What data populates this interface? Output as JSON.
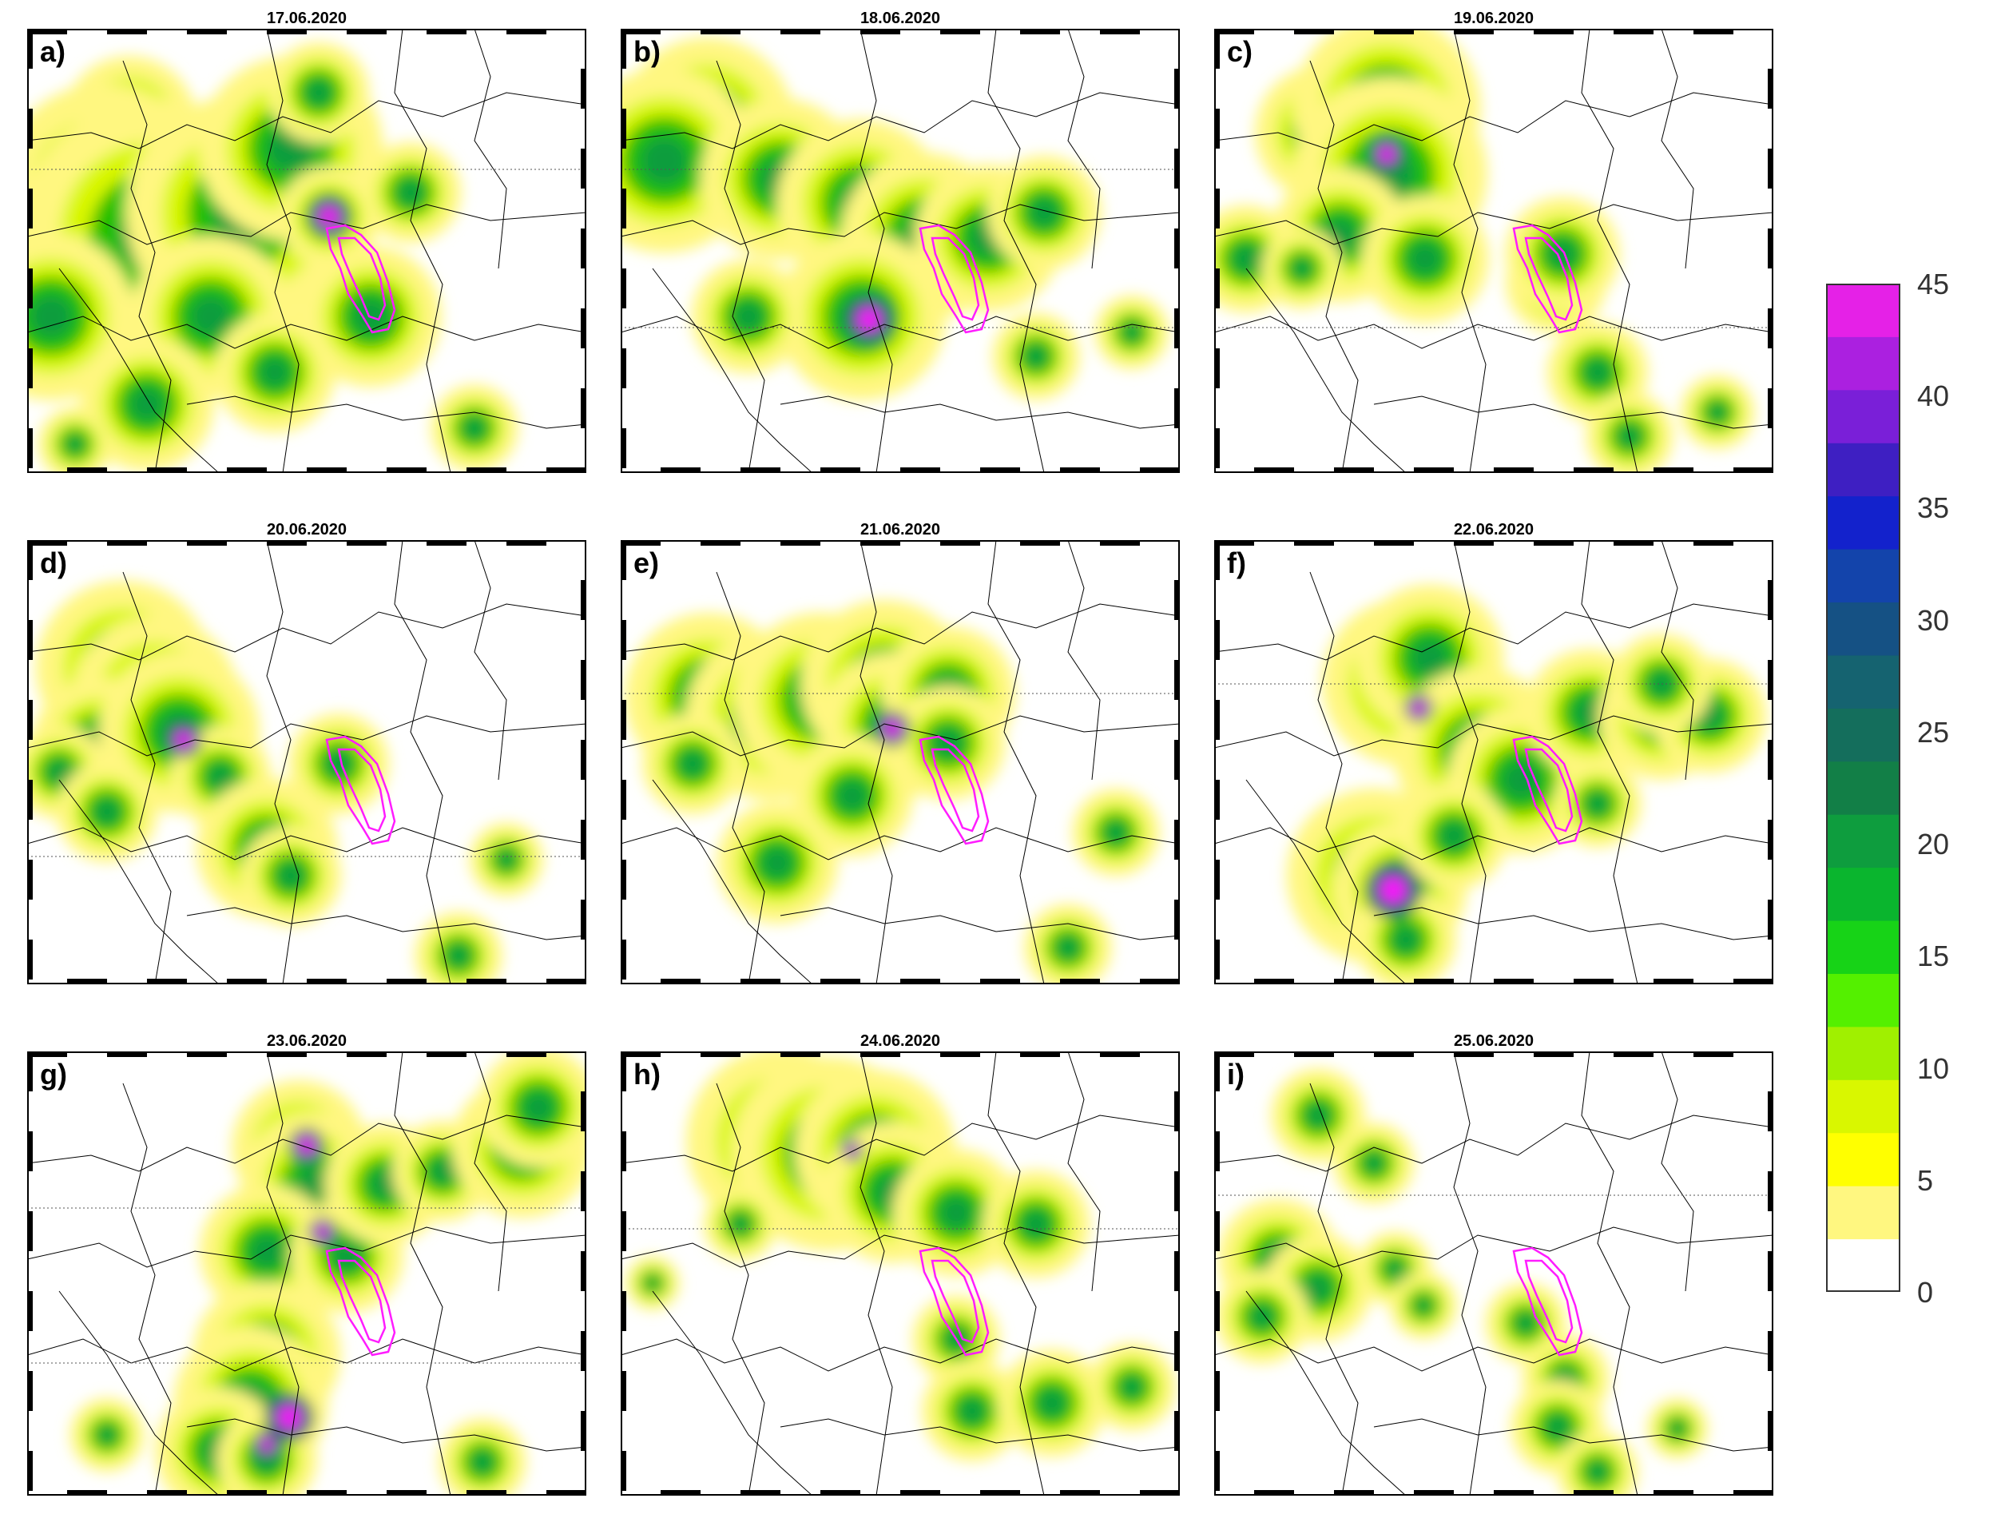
{
  "panels": [
    {
      "letter": "a)",
      "date": "17.06.2020",
      "cells": [
        [
          128,
          118,
          40
        ],
        [
          96,
          203,
          64
        ],
        [
          160,
          260,
          82
        ],
        [
          270,
          230,
          70
        ],
        [
          330,
          150,
          55
        ],
        [
          378,
          235,
          30
        ],
        [
          30,
          360,
          50
        ],
        [
          230,
          360,
          48
        ],
        [
          430,
          360,
          42
        ],
        [
          480,
          205,
          30
        ],
        [
          365,
          80,
          30
        ],
        [
          310,
          430,
          36
        ],
        [
          150,
          470,
          40
        ],
        [
          560,
          500,
          26
        ],
        [
          60,
          520,
          22
        ]
      ],
      "cores": [
        [
          378,
          235,
          12
        ]
      ],
      "gridlines": [
        [
          0,
          176,
          700,
          176
        ]
      ]
    },
    {
      "letter": "b)",
      "date": "18.06.2020",
      "cells": [
        [
          108,
          120,
          52
        ],
        [
          55,
          165,
          55
        ],
        [
          200,
          188,
          48
        ],
        [
          300,
          218,
          50
        ],
        [
          380,
          260,
          50
        ],
        [
          302,
          360,
          50
        ],
        [
          460,
          262,
          44
        ],
        [
          530,
          230,
          34
        ],
        [
          160,
          360,
          34
        ],
        [
          520,
          410,
          26
        ],
        [
          640,
          380,
          22
        ]
      ],
      "cores": [
        [
          311,
          364,
          14
        ]
      ],
      "gridlines": [
        [
          0,
          176,
          700,
          176
        ],
        [
          0,
          374,
          700,
          374
        ]
      ]
    },
    {
      "letter": "c)",
      "date": "19.06.2020",
      "cells": [
        [
          135,
          130,
          40
        ],
        [
          216,
          100,
          56
        ],
        [
          220,
          182,
          58
        ],
        [
          158,
          258,
          40
        ],
        [
          264,
          288,
          38
        ],
        [
          428,
          318,
          30
        ],
        [
          436,
          282,
          34
        ],
        [
          40,
          288,
          32
        ],
        [
          110,
          300,
          24
        ],
        [
          480,
          430,
          30
        ],
        [
          520,
          510,
          26
        ],
        [
          630,
          480,
          22
        ]
      ],
      "cores": [
        [
          216,
          157,
          10
        ]
      ],
      "gridlines": [
        [
          0,
          374,
          700,
          374
        ]
      ]
    },
    {
      "letter": "d)",
      "date": "20.06.2020",
      "cells": [
        [
          120,
          160,
          52
        ],
        [
          160,
          200,
          50
        ],
        [
          90,
          256,
          40
        ],
        [
          190,
          240,
          48
        ],
        [
          242,
          296,
          30
        ],
        [
          300,
          386,
          42
        ],
        [
          330,
          420,
          30
        ],
        [
          390,
          280,
          30
        ],
        [
          40,
          290,
          28
        ],
        [
          100,
          340,
          30
        ],
        [
          600,
          400,
          22
        ],
        [
          540,
          520,
          26
        ]
      ],
      "cores": [
        [
          196,
          250,
          10
        ]
      ],
      "gridlines": [
        [
          0,
          396,
          700,
          396
        ]
      ]
    },
    {
      "letter": "e)",
      "date": "21.06.2020",
      "cells": [
        [
          110,
          196,
          50
        ],
        [
          186,
          220,
          50
        ],
        [
          250,
          200,
          52
        ],
        [
          330,
          180,
          50
        ],
        [
          342,
          232,
          44
        ],
        [
          410,
          192,
          40
        ],
        [
          410,
          254,
          34
        ],
        [
          290,
          320,
          36
        ],
        [
          196,
          404,
          36
        ],
        [
          90,
          280,
          30
        ],
        [
          620,
          366,
          26
        ],
        [
          560,
          510,
          26
        ]
      ],
      "cores": [
        [
          340,
          236,
          10
        ]
      ],
      "gridlines": [
        [
          0,
          192,
          700,
          192
        ]
      ]
    },
    {
      "letter": "f)",
      "date": "22.06.2020",
      "cells": [
        [
          240,
          178,
          50
        ],
        [
          270,
          148,
          44
        ],
        [
          330,
          264,
          50
        ],
        [
          384,
          300,
          44
        ],
        [
          200,
          420,
          52
        ],
        [
          232,
          436,
          40
        ],
        [
          300,
          370,
          32
        ],
        [
          470,
          216,
          38
        ],
        [
          560,
          220,
          38
        ],
        [
          620,
          220,
          34
        ],
        [
          560,
          180,
          30
        ],
        [
          480,
          330,
          26
        ],
        [
          240,
          500,
          30
        ]
      ],
      "cores": [
        [
          224,
          438,
          16
        ],
        [
          256,
          210,
          8
        ]
      ],
      "gridlines": [
        [
          0,
          180,
          700,
          180
        ]
      ]
    },
    {
      "letter": "g)",
      "date": "23.06.2020",
      "cells": [
        [
          340,
          120,
          40
        ],
        [
          360,
          168,
          44
        ],
        [
          300,
          250,
          40
        ],
        [
          400,
          256,
          34
        ],
        [
          448,
          166,
          36
        ],
        [
          520,
          150,
          30
        ],
        [
          620,
          120,
          42
        ],
        [
          640,
          70,
          36
        ],
        [
          300,
          380,
          44
        ],
        [
          280,
          440,
          46
        ],
        [
          240,
          500,
          38
        ],
        [
          300,
          510,
          30
        ],
        [
          100,
          480,
          22
        ],
        [
          570,
          514,
          26
        ]
      ],
      "cores": [
        [
          350,
          118,
          10
        ],
        [
          328,
          458,
          14
        ],
        [
          300,
          492,
          8
        ],
        [
          370,
          226,
          8
        ]
      ],
      "gridlines": [
        [
          0,
          196,
          700,
          196
        ],
        [
          0,
          390,
          700,
          390
        ]
      ]
    },
    {
      "letter": "h)",
      "date": "24.06.2020",
      "cells": [
        [
          200,
          112,
          56
        ],
        [
          260,
          128,
          58
        ],
        [
          318,
          124,
          48
        ],
        [
          340,
          176,
          42
        ],
        [
          420,
          202,
          38
        ],
        [
          520,
          216,
          32
        ],
        [
          150,
          216,
          22
        ],
        [
          420,
          360,
          26
        ],
        [
          440,
          450,
          30
        ],
        [
          540,
          440,
          32
        ],
        [
          640,
          420,
          26
        ],
        [
          40,
          290,
          16
        ]
      ],
      "cores": [
        [
          290,
          124,
          6
        ]
      ],
      "gridlines": [
        [
          0,
          222,
          700,
          222
        ]
      ]
    },
    {
      "letter": "i)",
      "date": "25.06.2020",
      "cells": [
        [
          130,
          80,
          28
        ],
        [
          200,
          140,
          24
        ],
        [
          80,
          260,
          36
        ],
        [
          130,
          296,
          32
        ],
        [
          60,
          332,
          28
        ],
        [
          226,
          272,
          22
        ],
        [
          262,
          318,
          20
        ],
        [
          390,
          340,
          24
        ],
        [
          440,
          410,
          26
        ],
        [
          430,
          470,
          28
        ],
        [
          480,
          526,
          24
        ],
        [
          580,
          472,
          18
        ]
      ],
      "cores": [],
      "gridlines": [
        [
          0,
          180,
          700,
          180
        ]
      ]
    }
  ],
  "colorbar": {
    "ticks": [
      "45",
      "40",
      "35",
      "30",
      "25",
      "20",
      "15",
      "10",
      "5",
      "0"
    ],
    "colors": [
      "#ffffff",
      "#fff780",
      "#ffff00",
      "#d9f700",
      "#a0f000",
      "#54f000",
      "#17d317",
      "#0ab52e",
      "#0e9d3e",
      "#127f47",
      "#146e5c",
      "#156370",
      "#155184",
      "#1344ab",
      "#1322cc",
      "#3e1fc2",
      "#7a1fd8",
      "#ab20e0",
      "#e521e7"
    ]
  },
  "palette": {
    "outline": "#000000",
    "basin": "#ff1cff",
    "precip_low": "#fff780",
    "precip_mid": "#22c000",
    "precip_high": "#166d54",
    "precip_core": "#ff10ff"
  }
}
